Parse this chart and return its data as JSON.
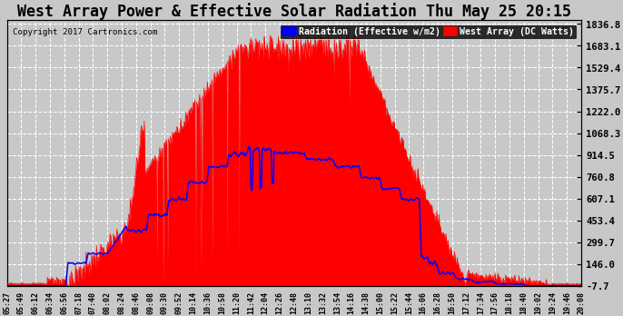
{
  "title": "West Array Power & Effective Solar Radiation Thu May 25 20:15",
  "copyright": "Copyright 2017 Cartronics.com",
  "legend_labels": [
    "Radiation (Effective w/m2)",
    "West Array (DC Watts)"
  ],
  "legend_colors": [
    "blue",
    "red"
  ],
  "y_ticks": [
    -7.7,
    146.0,
    299.7,
    453.4,
    607.1,
    760.8,
    914.5,
    1068.3,
    1222.0,
    1375.7,
    1529.4,
    1683.1,
    1836.8
  ],
  "y_min": -7.7,
  "y_max": 1836.8,
  "background_color": "#c8c8c8",
  "plot_bg_color": "#c8c8c8",
  "grid_color": "#aaaaaa",
  "title_fontsize": 11,
  "time_labels": [
    "05:27",
    "05:49",
    "06:12",
    "06:34",
    "06:56",
    "07:18",
    "07:40",
    "08:02",
    "08:24",
    "08:46",
    "09:08",
    "09:30",
    "09:52",
    "10:14",
    "10:36",
    "10:58",
    "11:20",
    "11:42",
    "12:04",
    "12:26",
    "12:48",
    "13:10",
    "13:32",
    "13:54",
    "14:16",
    "14:38",
    "15:00",
    "15:22",
    "15:44",
    "16:06",
    "16:28",
    "16:50",
    "17:12",
    "17:34",
    "17:56",
    "18:18",
    "18:40",
    "19:02",
    "19:24",
    "19:46",
    "20:08"
  ],
  "num_points": 820
}
